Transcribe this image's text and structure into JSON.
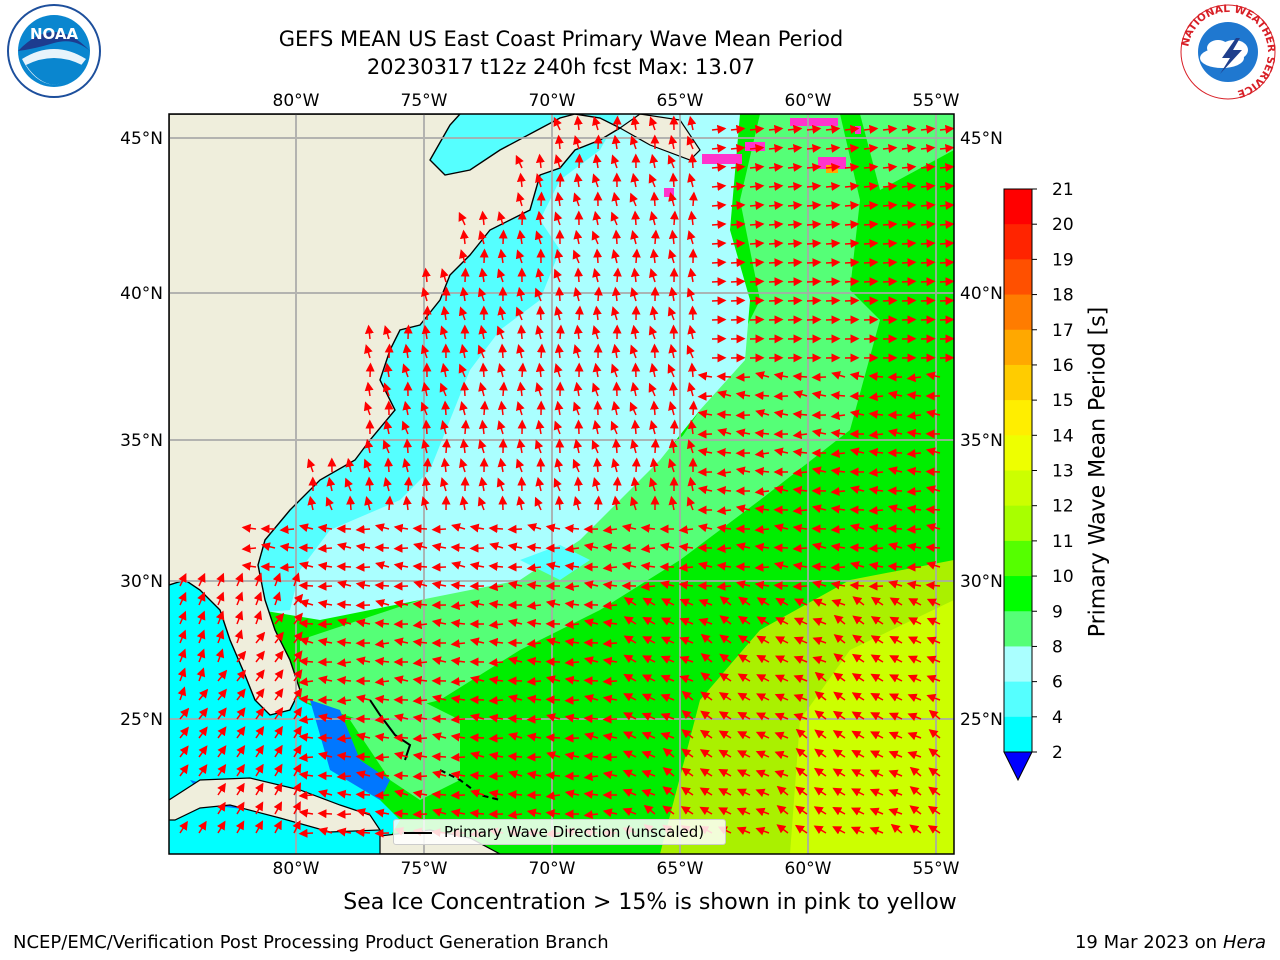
{
  "header": {
    "title_line1": "GEFS MEAN US East Coast Primary Wave Mean Period",
    "title_line2": "20230317 t12z 240h fcst   Max: 13.07"
  },
  "logos": {
    "noaa": "NOAA",
    "nws": "NATIONAL WEATHER SERVICE"
  },
  "map": {
    "lon_ticks": [
      "80°W",
      "75°W",
      "70°W",
      "65°W",
      "60°W",
      "55°W"
    ],
    "lat_ticks": [
      "45°N",
      "40°N",
      "35°N",
      "30°N",
      "25°N"
    ],
    "legend_label": "Primary Wave Direction (unscaled)",
    "arrow_color": "#ff0000",
    "land_color": "#efeedc"
  },
  "colorbar": {
    "label": "Primary Wave Mean Period [s]",
    "ticks": [
      "21",
      "20",
      "19",
      "18",
      "17",
      "16",
      "15",
      "14",
      "13",
      "12",
      "11",
      "10",
      "9",
      "8",
      "6",
      "4",
      "2"
    ],
    "colors": [
      "#ff0000",
      "#ff2400",
      "#ff5000",
      "#ff7c00",
      "#ffa800",
      "#ffcc00",
      "#ffee00",
      "#eeff00",
      "#ccff00",
      "#a8ff00",
      "#55ff00",
      "#00ff00",
      "#55ff77",
      "#aaffff",
      "#55ffff",
      "#00ffff",
      "#00aaff",
      "#0055ff",
      "#0000ff"
    ]
  },
  "subtitle": "Sea Ice Concentration > 15% is shown in pink to yellow",
  "footer": {
    "left": "NCEP/EMC/Verification Post Processing Product Generation Branch",
    "right_date": "19 Mar 2023 on",
    "right_host": "Hera"
  }
}
